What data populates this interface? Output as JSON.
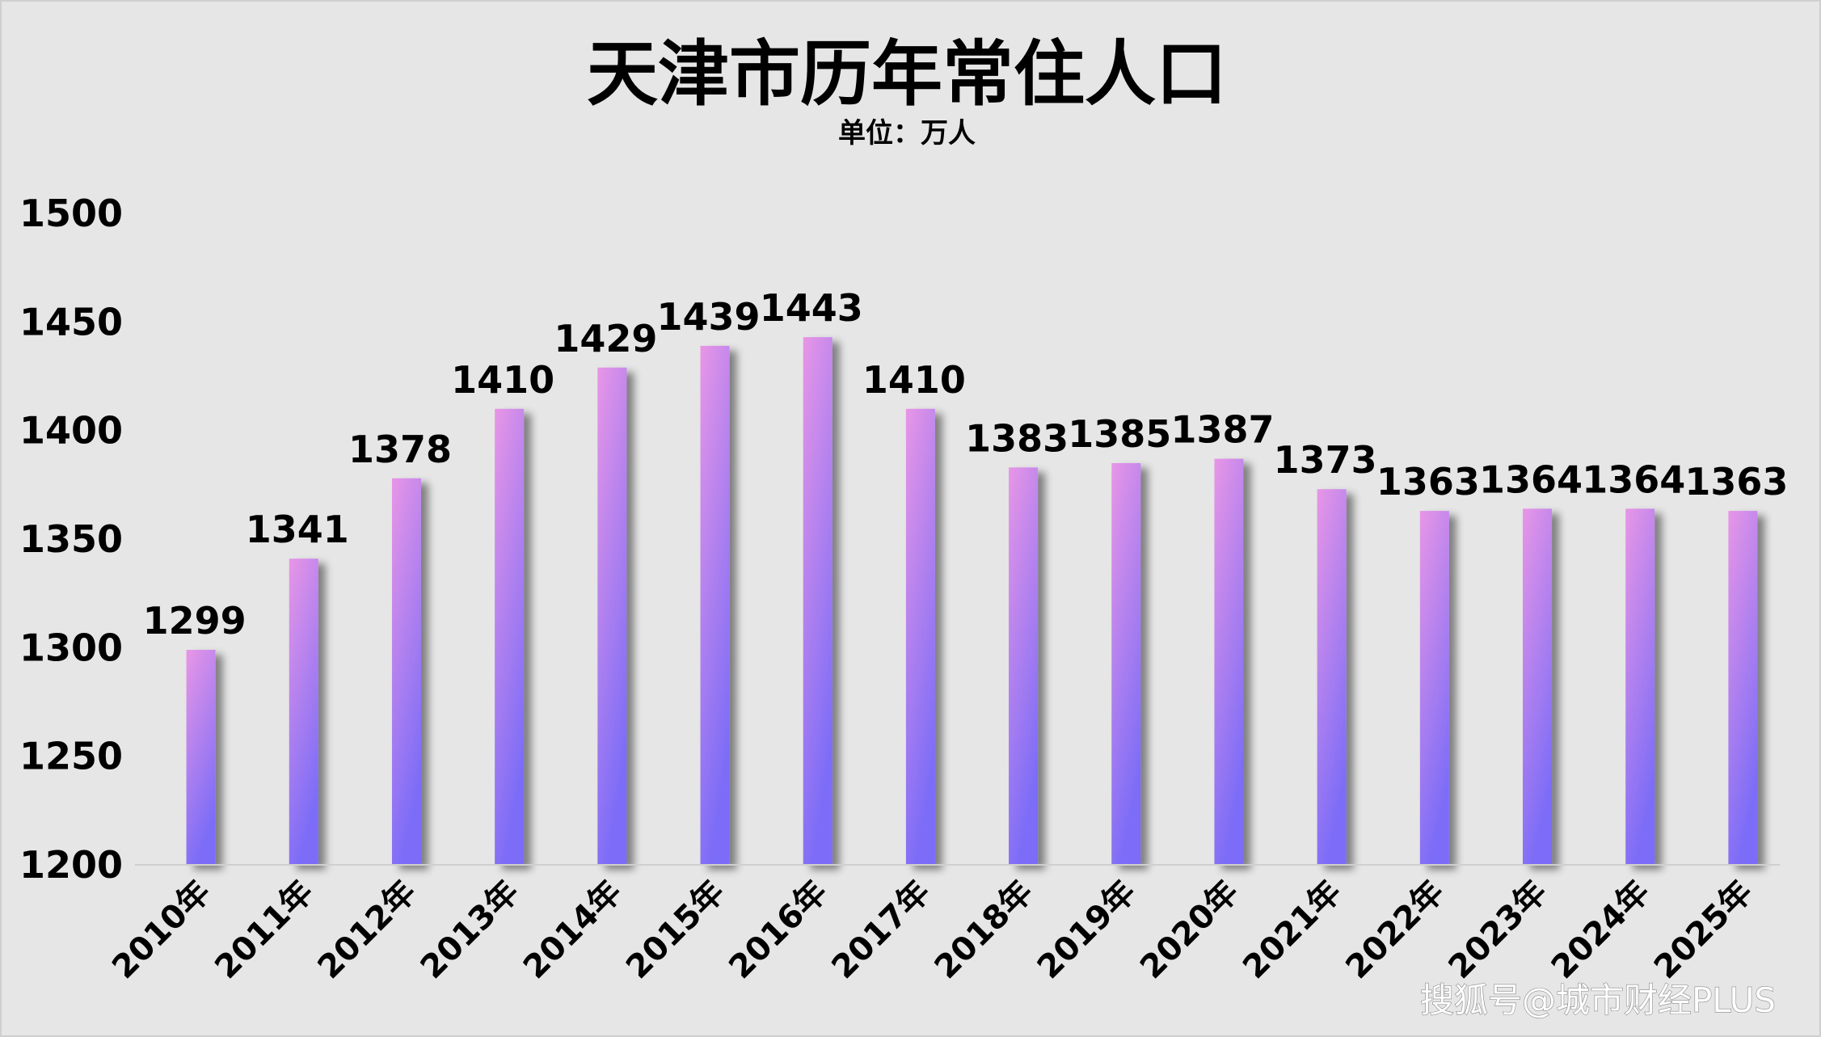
{
  "chart_data": {
    "type": "bar",
    "title": "天津市历年常住人口",
    "subtitle": "单位：万人",
    "categories": [
      "2010年",
      "2011年",
      "2012年",
      "2013年",
      "2014年",
      "2015年",
      "2016年",
      "2017年",
      "2018年",
      "2019年",
      "2020年",
      "2021年",
      "2022年",
      "2023年",
      "2024年",
      "2025年"
    ],
    "values": [
      1299,
      1341,
      1378,
      1410,
      1429,
      1439,
      1443,
      1410,
      1383,
      1385,
      1387,
      1373,
      1363,
      1364,
      1364,
      1363
    ],
    "ylim": [
      1200,
      1500
    ],
    "yticks": [
      "1200",
      "1250",
      "1300",
      "1350",
      "1400",
      "1450",
      "1500"
    ],
    "xlabel": "",
    "ylabel": "",
    "grid": false,
    "legend": "none",
    "bar_gradient": [
      "#e896e6",
      "#7b6cf7"
    ]
  },
  "watermark": "搜狐号@城市财经PLUS"
}
